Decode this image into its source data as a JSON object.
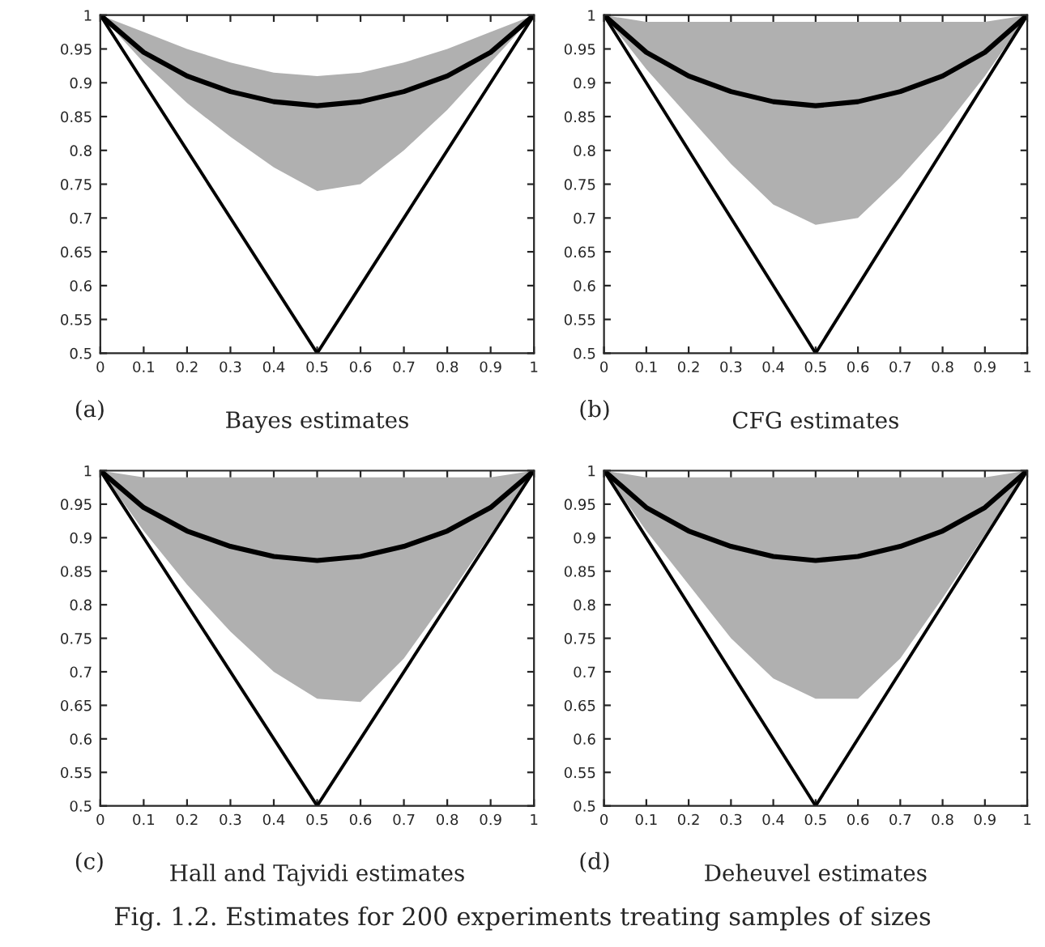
{
  "chart_data": [
    {
      "type": "line",
      "xlabel": "Bayes estimates",
      "annotations": [
        "(a)"
      ],
      "x": [
        0,
        0.1,
        0.2,
        0.3,
        0.4,
        0.5,
        0.6,
        0.7,
        0.8,
        0.9,
        1
      ],
      "xlim": [
        0,
        1
      ],
      "ylim": [
        0.5,
        1
      ],
      "xticks": [
        0,
        0.1,
        0.2,
        0.3,
        0.4,
        0.5,
        0.6,
        0.7,
        0.8,
        0.9,
        1
      ],
      "yticks": [
        0.5,
        0.55,
        0.6,
        0.65,
        0.7,
        0.75,
        0.8,
        0.85,
        0.9,
        0.95,
        1
      ],
      "grid": false,
      "legend": false,
      "series": [
        {
          "color": "#000000",
          "line_style": "solid",
          "x": [
            0,
            0.5,
            1
          ],
          "values": [
            1,
            0.5,
            1
          ]
        },
        {
          "color": "#000000",
          "line_style": "solid",
          "values": [
            1,
            0.945,
            0.91,
            0.887,
            0.872,
            0.866,
            0.872,
            0.887,
            0.91,
            0.945,
            1
          ],
          "lower": [
            1,
            0.93,
            0.87,
            0.82,
            0.775,
            0.74,
            0.75,
            0.8,
            0.86,
            0.93,
            1
          ],
          "upper": [
            1,
            0.975,
            0.95,
            0.93,
            0.915,
            0.91,
            0.915,
            0.93,
            0.95,
            0.975,
            1
          ]
        }
      ]
    },
    {
      "type": "line",
      "xlabel": "CFG estimates",
      "annotations": [
        "(b)"
      ],
      "x": [
        0,
        0.1,
        0.2,
        0.3,
        0.4,
        0.5,
        0.6,
        0.7,
        0.8,
        0.9,
        1
      ],
      "xlim": [
        0,
        1
      ],
      "ylim": [
        0.5,
        1
      ],
      "xticks": [
        0,
        0.1,
        0.2,
        0.3,
        0.4,
        0.5,
        0.6,
        0.7,
        0.8,
        0.9,
        1
      ],
      "yticks": [
        0.5,
        0.55,
        0.6,
        0.65,
        0.7,
        0.75,
        0.8,
        0.85,
        0.9,
        0.95,
        1
      ],
      "grid": false,
      "legend": false,
      "series": [
        {
          "color": "#000000",
          "line_style": "solid",
          "x": [
            0,
            0.5,
            1
          ],
          "values": [
            1,
            0.5,
            1
          ]
        },
        {
          "color": "#000000",
          "line_style": "solid",
          "values": [
            1,
            0.945,
            0.91,
            0.887,
            0.872,
            0.866,
            0.872,
            0.887,
            0.91,
            0.945,
            1
          ],
          "lower": [
            1,
            0.92,
            0.85,
            0.78,
            0.72,
            0.69,
            0.7,
            0.76,
            0.83,
            0.91,
            1
          ],
          "upper": [
            1,
            0.99,
            0.99,
            0.99,
            0.99,
            0.99,
            0.99,
            0.99,
            0.99,
            0.99,
            1
          ]
        }
      ]
    },
    {
      "type": "line",
      "xlabel": "Hall and Tajvidi estimates",
      "annotations": [
        "(c)"
      ],
      "x": [
        0,
        0.1,
        0.2,
        0.3,
        0.4,
        0.5,
        0.6,
        0.7,
        0.8,
        0.9,
        1
      ],
      "xlim": [
        0,
        1
      ],
      "ylim": [
        0.5,
        1
      ],
      "xticks": [
        0,
        0.1,
        0.2,
        0.3,
        0.4,
        0.5,
        0.6,
        0.7,
        0.8,
        0.9,
        1
      ],
      "yticks": [
        0.5,
        0.55,
        0.6,
        0.65,
        0.7,
        0.75,
        0.8,
        0.85,
        0.9,
        0.95,
        1
      ],
      "grid": false,
      "legend": false,
      "series": [
        {
          "color": "#000000",
          "line_style": "solid",
          "x": [
            0,
            0.5,
            1
          ],
          "values": [
            1,
            0.5,
            1
          ]
        },
        {
          "color": "#000000",
          "line_style": "solid",
          "values": [
            1,
            0.945,
            0.91,
            0.887,
            0.872,
            0.866,
            0.872,
            0.887,
            0.91,
            0.945,
            1
          ],
          "lower": [
            1,
            0.91,
            0.83,
            0.76,
            0.7,
            0.66,
            0.655,
            0.72,
            0.81,
            0.905,
            1
          ],
          "upper": [
            1,
            0.99,
            0.99,
            0.99,
            0.99,
            0.99,
            0.99,
            0.99,
            0.99,
            0.99,
            1
          ]
        }
      ]
    },
    {
      "type": "line",
      "xlabel": "Deheuvel estimates",
      "annotations": [
        "(d)",
        "Fig. 1.2. Estimates for 200 experiments treating samples of sizes"
      ],
      "x": [
        0,
        0.1,
        0.2,
        0.3,
        0.4,
        0.5,
        0.6,
        0.7,
        0.8,
        0.9,
        1
      ],
      "xlim": [
        0,
        1
      ],
      "ylim": [
        0.5,
        1
      ],
      "xticks": [
        0,
        0.1,
        0.2,
        0.3,
        0.4,
        0.5,
        0.6,
        0.7,
        0.8,
        0.9,
        1
      ],
      "yticks": [
        0.5,
        0.55,
        0.6,
        0.65,
        0.7,
        0.75,
        0.8,
        0.85,
        0.9,
        0.95,
        1
      ],
      "grid": false,
      "legend": false,
      "series": [
        {
          "color": "#000000",
          "line_style": "solid",
          "x": [
            0,
            0.5,
            1
          ],
          "values": [
            1,
            0.5,
            1
          ]
        },
        {
          "color": "#000000",
          "line_style": "solid",
          "values": [
            1,
            0.945,
            0.91,
            0.887,
            0.872,
            0.866,
            0.872,
            0.887,
            0.91,
            0.945,
            1
          ],
          "lower": [
            1,
            0.91,
            0.83,
            0.75,
            0.69,
            0.66,
            0.66,
            0.72,
            0.81,
            0.905,
            1
          ],
          "upper": [
            1,
            0.99,
            0.99,
            0.99,
            0.99,
            0.99,
            0.99,
            0.99,
            0.99,
            0.99,
            1
          ]
        }
      ]
    }
  ]
}
